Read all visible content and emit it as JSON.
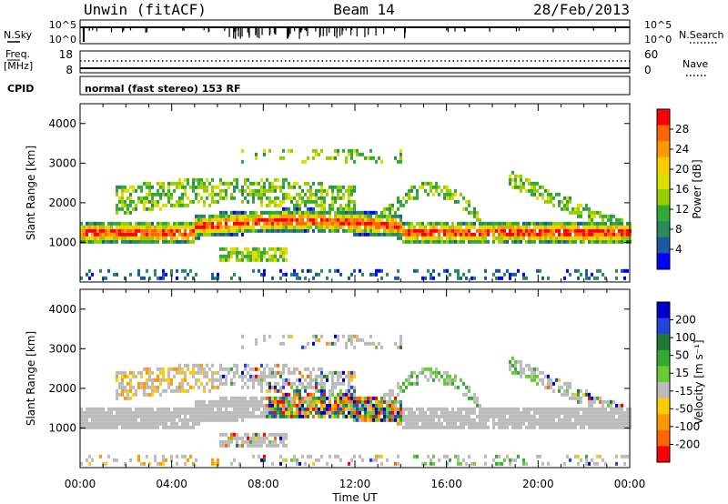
{
  "header": {
    "station": "Unwin (fitACF)",
    "beam": "Beam 14",
    "date": "28/Feb/2013"
  },
  "summary": {
    "nsky_label": "N.Sky",
    "nsearch_label": "N.Search",
    "left_ticks": [
      "10^5",
      "10^0"
    ],
    "right_ticks": [
      "10^5",
      "10^0"
    ],
    "freq_label_1": "Freq.",
    "freq_label_2": "[MHz]",
    "freq_ticks": [
      "18",
      "8"
    ],
    "nave_label": "Nave",
    "nave_ticks": [
      "60",
      "0"
    ],
    "cpid_label": "CPID",
    "cpid_text": "normal (fast stereo) 153 RF"
  },
  "chart_data": [
    {
      "type": "heatmap",
      "panel": "power",
      "xlabel": "",
      "ylabel": "Slant Range [km]",
      "y_ticks": [
        "4000",
        "3000",
        "2000",
        "1000"
      ],
      "ylim": [
        0,
        4500
      ],
      "colorbar_label": "Power [dB]",
      "colorbar_ticks": [
        "28",
        "24",
        "20",
        "16",
        "12",
        "8",
        "4"
      ],
      "colorbar_colors": [
        "#ff0000",
        "#ff6600",
        "#ff9900",
        "#ffcc00",
        "#dddd00",
        "#99cc00",
        "#33aa33",
        "#2a8a5a",
        "#1a5aa0",
        "#0000ff"
      ]
    },
    {
      "type": "heatmap",
      "panel": "velocity",
      "xlabel": "Time UT",
      "ylabel": "Slant Range [km]",
      "y_ticks": [
        "4000",
        "3000",
        "2000",
        "1000"
      ],
      "ylim": [
        0,
        4500
      ],
      "x_ticks": [
        "00:00",
        "04:00",
        "08:00",
        "12:00",
        "16:00",
        "20:00",
        "00:00"
      ],
      "colorbar_label": "Velocity [m s⁻¹]",
      "colorbar_ticks": [
        "200",
        "100",
        "50",
        "15",
        "-15",
        "-50",
        "-100",
        "-200"
      ],
      "colorbar_colors": [
        "#0000cc",
        "#2244dd",
        "#227733",
        "#33aa33",
        "#66cc33",
        "#bbbbbb",
        "#ffcc00",
        "#ff9900",
        "#ff6600",
        "#ff0000"
      ]
    }
  ]
}
